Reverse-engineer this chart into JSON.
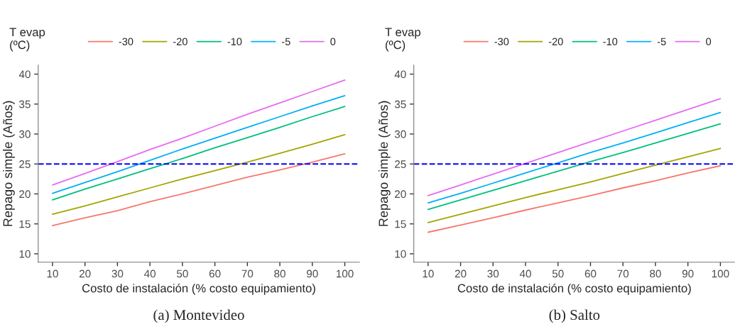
{
  "chart_data": [
    {
      "type": "line",
      "xlabel": "Costo de instalación (% costo equipamiento)",
      "ylabel": "Repago simple (Años)",
      "legend_title": "T evap\n(ºC)",
      "legend": "top",
      "grid": false,
      "line_style": "solid",
      "x": [
        10,
        20,
        30,
        40,
        50,
        60,
        70,
        80,
        90,
        100
      ],
      "xlim": [
        5.6,
        104.5
      ],
      "xticks": [
        10,
        20,
        30,
        40,
        50,
        60,
        70,
        80,
        90,
        100
      ],
      "ylim": [
        8.6,
        41.5
      ],
      "yticks": [
        10,
        15,
        20,
        25,
        30,
        35,
        40
      ],
      "ref_lines": [
        {
          "axis": "y",
          "value": 25,
          "color": "#0000ff",
          "line_style": "dashed"
        }
      ],
      "annotations": [
        "(a) Montevideo"
      ],
      "series": [
        {
          "name": "-30",
          "color": "#f8766d",
          "values": [
            14.7,
            16.0,
            17.2,
            18.7,
            20.0,
            21.4,
            22.8,
            24.0,
            25.3,
            26.7
          ]
        },
        {
          "name": "-20",
          "color": "#a3a500",
          "values": [
            16.6,
            18.0,
            19.5,
            21.0,
            22.5,
            23.9,
            25.3,
            26.8,
            28.3,
            29.9
          ]
        },
        {
          "name": "-10",
          "color": "#00bf7d",
          "values": [
            19.0,
            20.8,
            22.5,
            24.2,
            25.9,
            27.7,
            29.4,
            31.1,
            32.9,
            34.6
          ]
        },
        {
          "name": "-5",
          "color": "#00b0f6",
          "values": [
            20.1,
            21.9,
            23.7,
            25.6,
            27.5,
            29.3,
            31.1,
            32.9,
            34.7,
            36.4
          ]
        },
        {
          "name": "0",
          "color": "#e76bf3",
          "values": [
            21.5,
            23.4,
            25.4,
            27.4,
            29.3,
            31.3,
            33.3,
            35.2,
            37.1,
            39.0
          ]
        }
      ]
    },
    {
      "type": "line",
      "xlabel": "Costo de instalación (% costo equipamiento)",
      "ylabel": "Repago simple (Años)",
      "legend_title": "T evap\n(ºC)",
      "legend": "top",
      "grid": false,
      "line_style": "solid",
      "x": [
        10,
        20,
        30,
        40,
        50,
        60,
        70,
        80,
        90,
        100
      ],
      "xlim": [
        5.6,
        104.5
      ],
      "xticks": [
        10,
        20,
        30,
        40,
        50,
        60,
        70,
        80,
        90,
        100
      ],
      "ylim": [
        8.6,
        41.5
      ],
      "yticks": [
        10,
        15,
        20,
        25,
        30,
        35,
        40
      ],
      "ref_lines": [
        {
          "axis": "y",
          "value": 25,
          "color": "#0000ff",
          "line_style": "dashed"
        }
      ],
      "annotations": [
        "(b) Salto"
      ],
      "series": [
        {
          "name": "-30",
          "color": "#f8766d",
          "values": [
            13.6,
            14.8,
            16.0,
            17.3,
            18.5,
            19.7,
            21.0,
            22.2,
            23.5,
            24.7
          ]
        },
        {
          "name": "-20",
          "color": "#a3a500",
          "values": [
            15.2,
            16.6,
            18.0,
            19.4,
            20.7,
            22.0,
            23.4,
            24.8,
            26.2,
            27.6
          ]
        },
        {
          "name": "-10",
          "color": "#00bf7d",
          "values": [
            17.4,
            19.0,
            20.6,
            22.2,
            23.8,
            25.4,
            26.9,
            28.5,
            30.1,
            31.7
          ]
        },
        {
          "name": "-5",
          "color": "#00b0f6",
          "values": [
            18.5,
            20.1,
            21.8,
            23.5,
            25.2,
            26.9,
            28.5,
            30.2,
            31.9,
            33.6
          ]
        },
        {
          "name": "0",
          "color": "#e76bf3",
          "values": [
            19.7,
            21.5,
            23.3,
            25.1,
            26.9,
            28.7,
            30.5,
            32.3,
            34.1,
            35.9
          ]
        }
      ]
    }
  ]
}
